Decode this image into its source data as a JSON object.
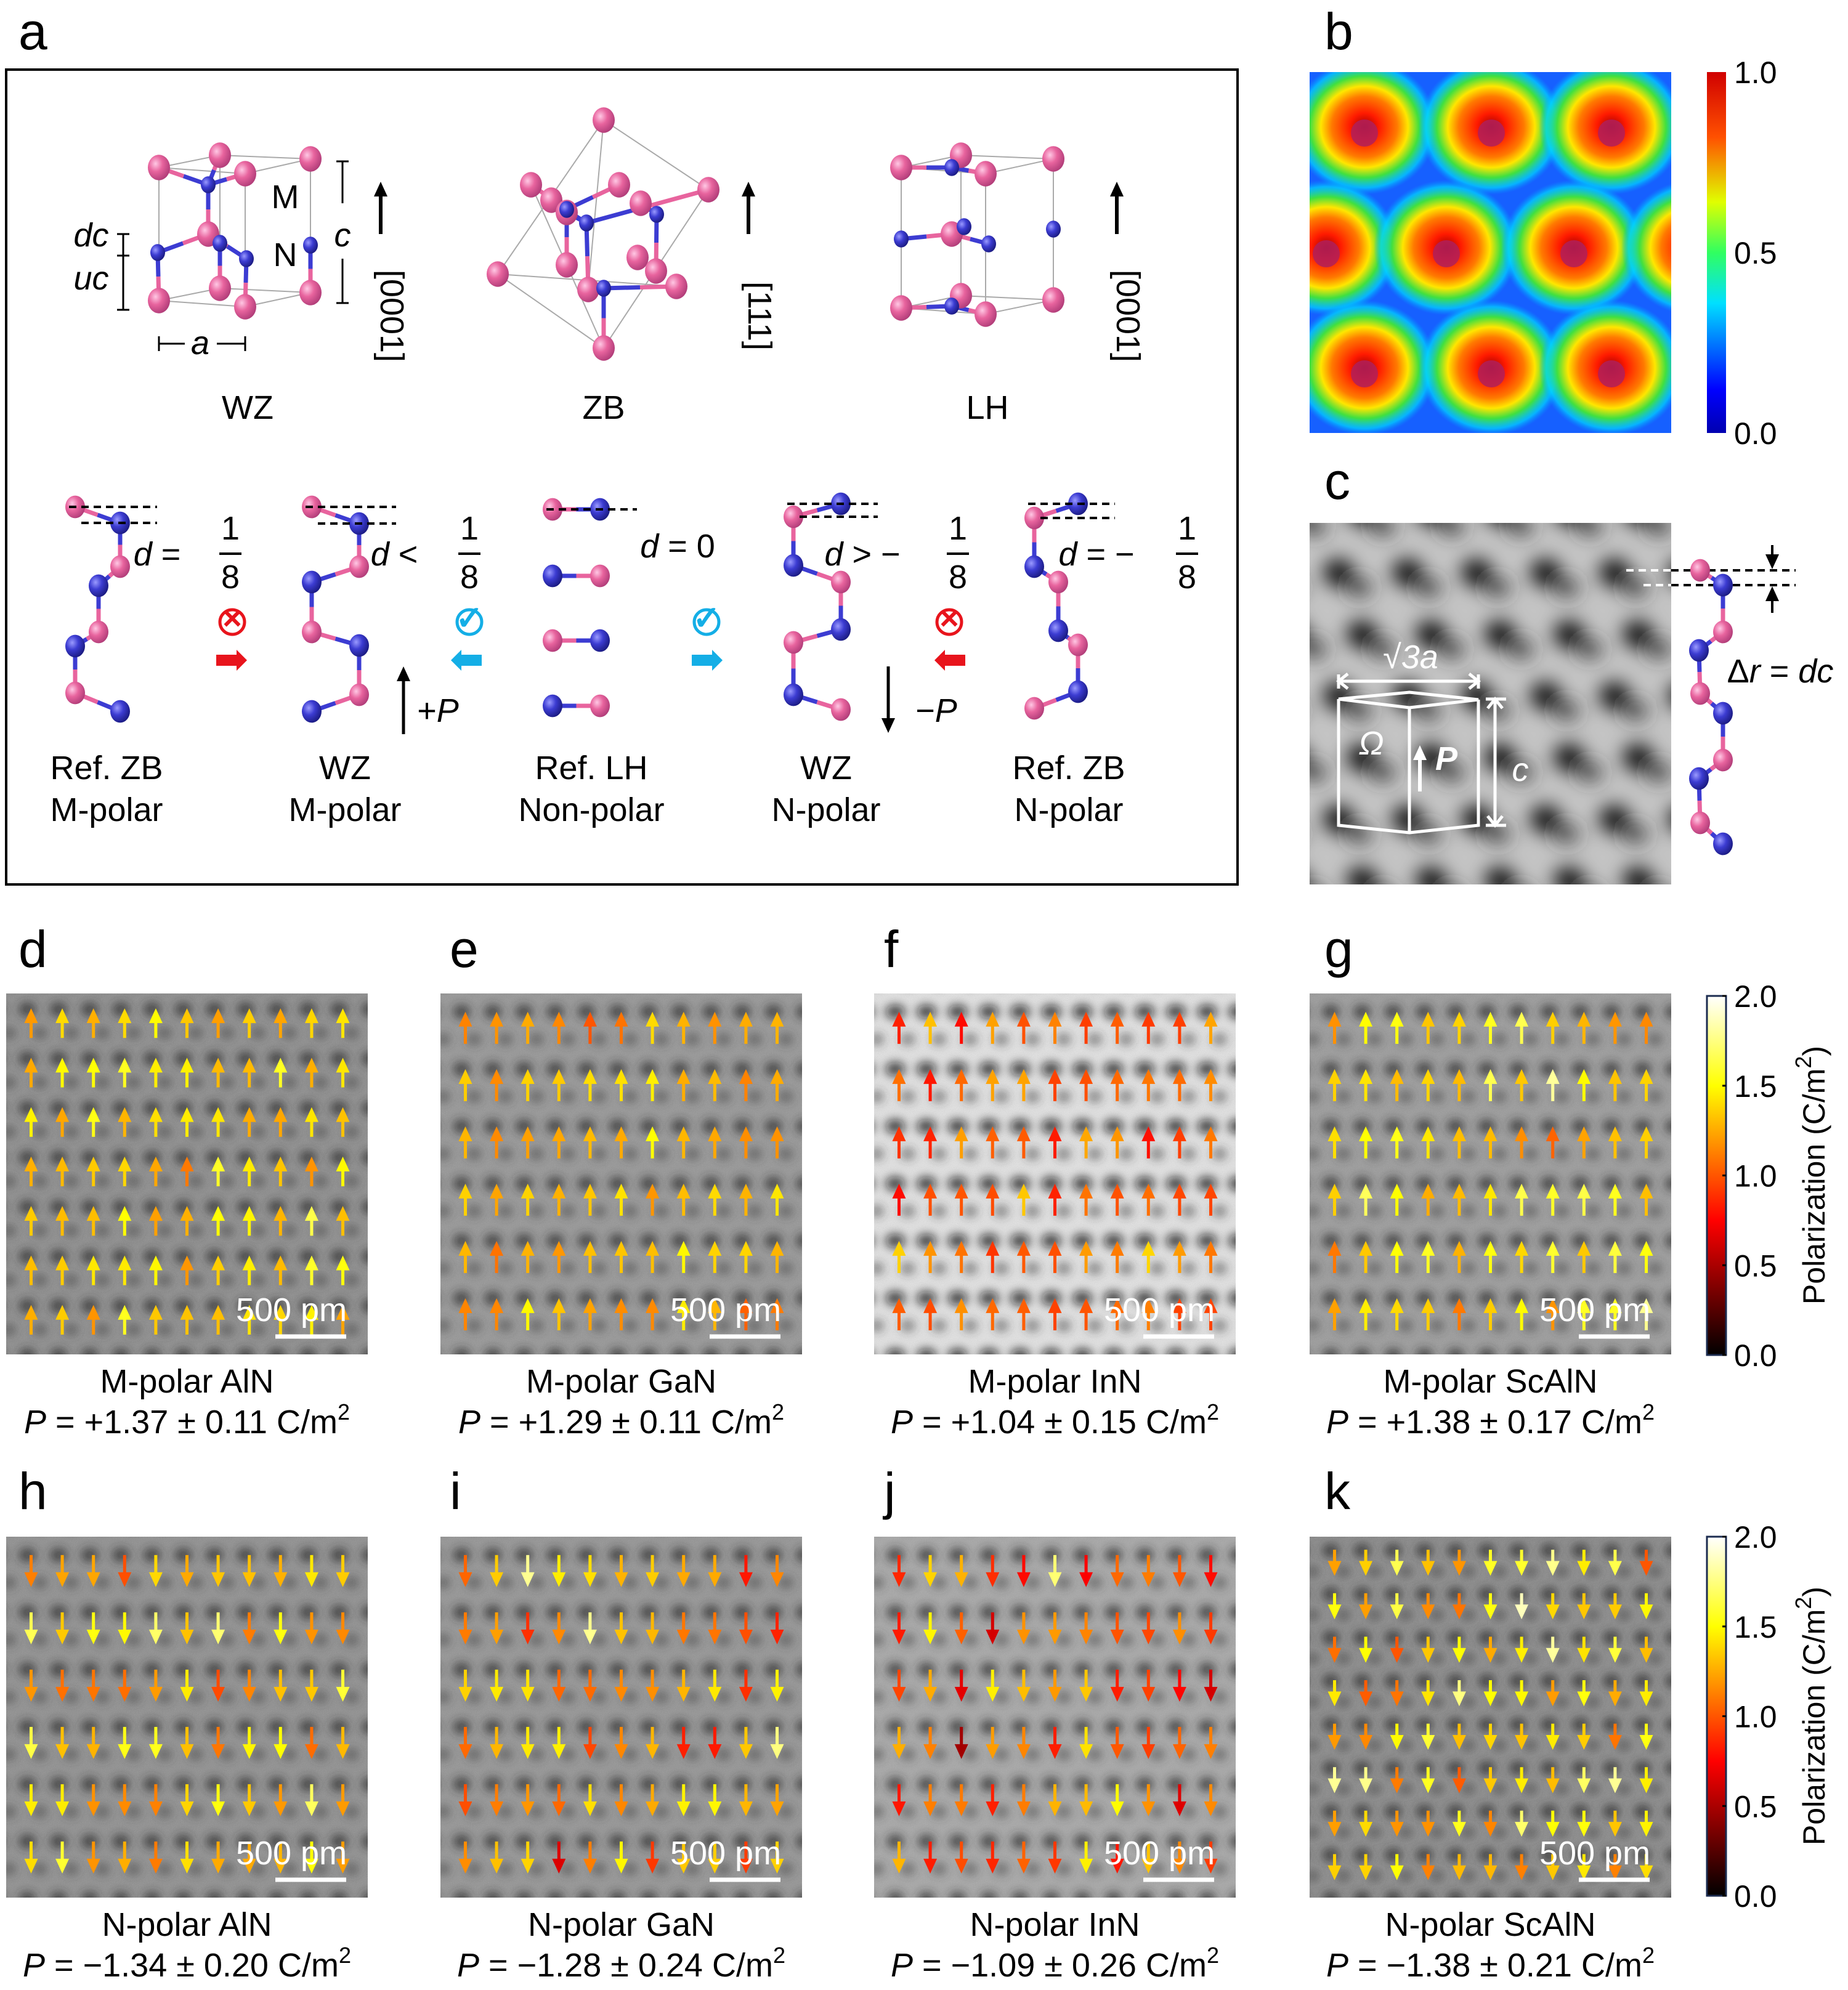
{
  "panel_labels": {
    "a": "a",
    "b": "b",
    "c": "c",
    "d": "d",
    "e": "e",
    "f": "f",
    "g": "g",
    "h": "h",
    "i": "i",
    "j": "j",
    "k": "k"
  },
  "panel_a": {
    "structures": [
      {
        "name": "WZ",
        "direction": "[0001]"
      },
      {
        "name": "ZB",
        "direction": "[111]"
      },
      {
        "name": "LH",
        "direction": "[0001]"
      }
    ],
    "wz_labels": {
      "M": "M",
      "N": "N",
      "c": "c",
      "dc": "dc",
      "uc": "uc",
      "a": "a"
    },
    "chains": [
      {
        "line1": "Ref. ZB",
        "line2": "M-polar",
        "d_symbol": "d",
        "relation": " = ",
        "num": "1",
        "den": "8"
      },
      {
        "line1": "WZ",
        "line2": "M-polar",
        "d_symbol": "d",
        "relation": " < ",
        "num": "1",
        "den": "8"
      },
      {
        "line1": "Ref. LH",
        "line2": "Non-polar",
        "d_symbol": "d",
        "relation": " = 0",
        "num": "",
        "den": ""
      },
      {
        "line1": "WZ",
        "line2": "N-polar",
        "d_symbol": "d",
        "relation": " > −",
        "num": "1",
        "den": "8"
      },
      {
        "line1": "Ref. ZB",
        "line2": "N-polar",
        "d_symbol": "d",
        "relation": " = −",
        "num": "1",
        "den": "8"
      }
    ],
    "transitions": [
      {
        "allowed": false,
        "symbol": "×",
        "direction": "right",
        "color": "#e8141c"
      },
      {
        "allowed": true,
        "symbol": "✓",
        "direction": "left",
        "color": "#14aee6"
      },
      {
        "allowed": true,
        "symbol": "✓",
        "direction": "right",
        "color": "#14aee6"
      },
      {
        "allowed": false,
        "symbol": "×",
        "direction": "left",
        "color": "#e8141c"
      }
    ],
    "polarization": [
      {
        "sign": "+",
        "symbol": "P"
      },
      {
        "sign": "−",
        "symbol": "P"
      }
    ]
  },
  "panel_b": {
    "colorbar_ticks": [
      "1.0",
      "0.5",
      "0.0"
    ]
  },
  "panel_c": {
    "width_label": "√3a",
    "omega": "Ω",
    "p_label": "P",
    "c_label": "c",
    "dr_lhs": "Δ",
    "dr_r": "r",
    "dr_eq": " = ",
    "dr_rhs": "dc"
  },
  "colors": {
    "metal_atom": "#e8649e",
    "nitrogen_atom": "#3c3cd2"
  },
  "micrographs": [
    {
      "id": "d",
      "material": "M-polar AlN",
      "p": "P",
      "value": " = +1.37 ± 0.11 C/m",
      "sup": "2",
      "mean": 1.37,
      "sd": 0.11,
      "direction": "up",
      "rows": 7,
      "cols": 11,
      "background": "#8c8c8c",
      "scale_bar": "500 pm"
    },
    {
      "id": "e",
      "material": "M-polar GaN",
      "p": "P",
      "value": " = +1.29 ± 0.11 C/m",
      "sup": "2",
      "mean": 1.29,
      "sd": 0.11,
      "direction": "up",
      "rows": 6,
      "cols": 11,
      "background": "#959595",
      "scale_bar": "500 pm"
    },
    {
      "id": "f",
      "material": "M-polar InN",
      "p": "P",
      "value": " = +1.04 ± 0.15 C/m",
      "sup": "2",
      "mean": 1.04,
      "sd": 0.15,
      "direction": "up",
      "rows": 6,
      "cols": 11,
      "background": "#e4e4e4",
      "scale_bar": "500 pm"
    },
    {
      "id": "g",
      "material": "M-polar ScAlN",
      "p": "P",
      "value": " = +1.38 ± 0.17 C/m",
      "sup": "2",
      "mean": 1.38,
      "sd": 0.17,
      "direction": "up",
      "rows": 6,
      "cols": 11,
      "background": "#9a9a9a",
      "scale_bar": "500 pm"
    },
    {
      "id": "h",
      "material": "N-polar AlN",
      "p": "P",
      "value": " = −1.34 ± 0.20 C/m",
      "sup": "2",
      "mean": 1.34,
      "sd": 0.2,
      "direction": "down",
      "rows": 6,
      "cols": 11,
      "background": "#8e8e8e",
      "scale_bar": "500 pm"
    },
    {
      "id": "i",
      "material": "N-polar GaN",
      "p": "P",
      "value": " = −1.28 ± 0.24 C/m",
      "sup": "2",
      "mean": 1.28,
      "sd": 0.24,
      "direction": "down",
      "rows": 6,
      "cols": 11,
      "background": "#939393",
      "scale_bar": "500 pm"
    },
    {
      "id": "j",
      "material": "N-polar InN",
      "p": "P",
      "value": " = −1.09 ± 0.26 C/m",
      "sup": "2",
      "mean": 1.09,
      "sd": 0.26,
      "direction": "down",
      "rows": 6,
      "cols": 11,
      "background": "#a6a6a6",
      "scale_bar": "500 pm"
    },
    {
      "id": "k",
      "material": "N-polar ScAlN",
      "p": "P",
      "value": " = −1.38 ± 0.21 C/m",
      "sup": "2",
      "mean": 1.38,
      "sd": 0.21,
      "direction": "down",
      "rows": 8,
      "cols": 11,
      "background": "#8a8a8a",
      "scale_bar": "500 pm"
    }
  ],
  "polarization_colorbar": {
    "ticks": [
      "2.0",
      "1.5",
      "1.0",
      "0.5",
      "0.0"
    ],
    "label": "Polarization (C/m",
    "label_sup": "2",
    "label_end": ")",
    "range": [
      0,
      2
    ]
  }
}
